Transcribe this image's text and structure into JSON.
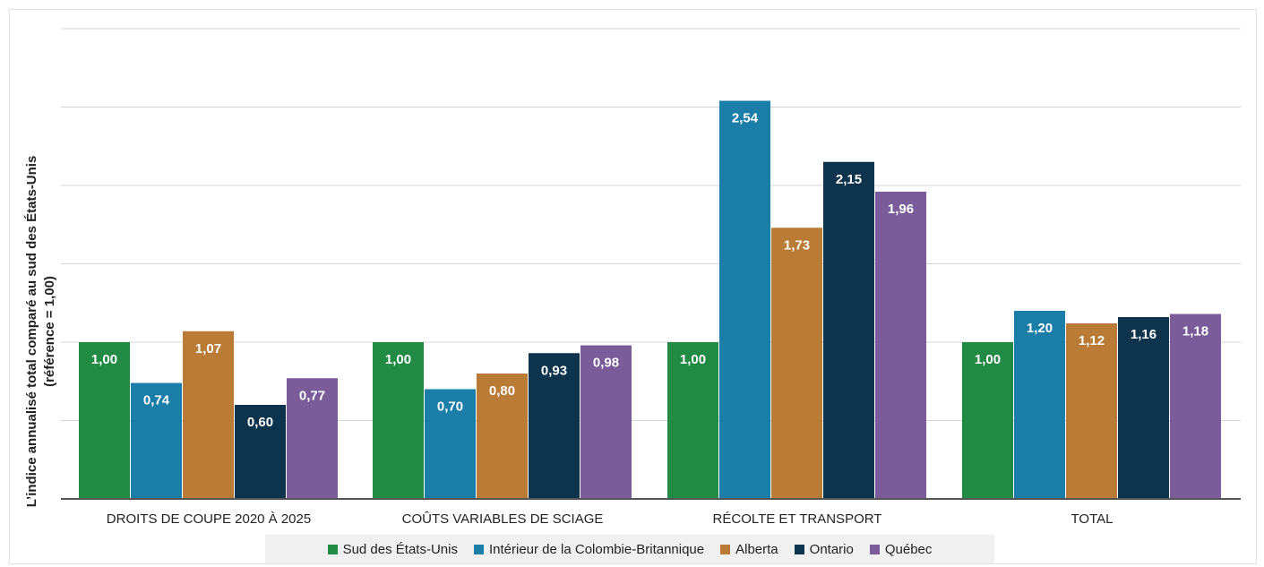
{
  "chart_data": {
    "type": "bar",
    "ylabel_line1": "L’indice annualisé total comparé au sud des États-Unis",
    "ylabel_line2": "(référence = 1,00)",
    "categories": [
      "DROITS DE COUPE 2020 À 2025",
      "COÛTS VARIABLES DE SCIAGE",
      "RÉCOLTE ET TRANSPORT",
      "TOTAL"
    ],
    "series": [
      {
        "name": "Sud des États-Unis",
        "color": "#218a44",
        "values": [
          1.0,
          1.0,
          1.0,
          1.0
        ],
        "labels": [
          "1,00",
          "1,00",
          "1,00",
          "1,00"
        ]
      },
      {
        "name": "Intérieur de la Colombie-Britannique",
        "color": "#1a7ea8",
        "values": [
          0.74,
          0.7,
          2.54,
          1.2
        ],
        "labels": [
          "0,74",
          "0,70",
          "2,54",
          "1,20"
        ]
      },
      {
        "name": "Alberta",
        "color": "#b97b35",
        "values": [
          1.07,
          0.8,
          1.73,
          1.12
        ],
        "labels": [
          "1,07",
          "0,80",
          "1,73",
          "1,12"
        ]
      },
      {
        "name": "Ontario",
        "color": "#0e344d",
        "values": [
          0.6,
          0.93,
          2.15,
          1.16
        ],
        "labels": [
          "0,60",
          "0,93",
          "2,15",
          "1,16"
        ]
      },
      {
        "name": "Québec",
        "color": "#7a5c9b",
        "values": [
          0.77,
          0.98,
          1.96,
          1.18
        ],
        "labels": [
          "0,77",
          "0,98",
          "1,96",
          "1,18"
        ]
      }
    ],
    "ylim": [
      0,
      3.0
    ],
    "gridlines": [
      0.5,
      1.0,
      1.5,
      2.0,
      2.5,
      3.0
    ],
    "grid": true,
    "legend_position": "bottom"
  }
}
